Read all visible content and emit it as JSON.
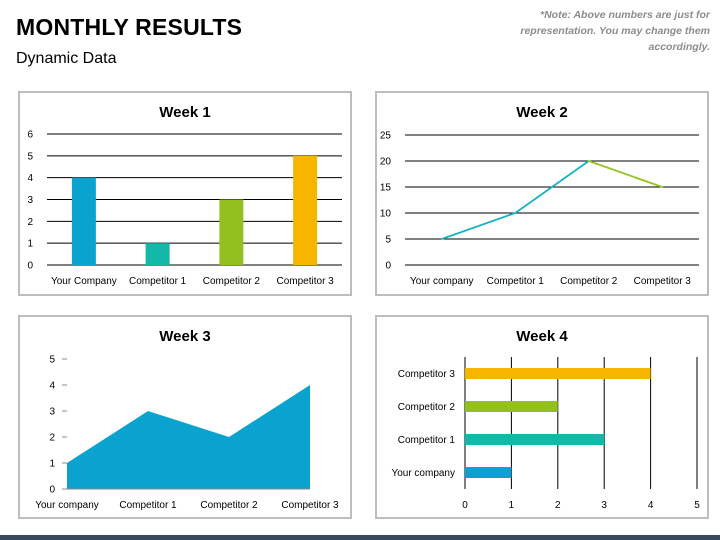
{
  "page": {
    "title": "MONTHLY RESULTS",
    "subtitle": "Dynamic Data",
    "note": "*Note: Above numbers are just for representation. You may change them accordingly."
  },
  "colors": {
    "blue": "#0aa3d0",
    "teal": "#13b8a9",
    "green": "#93c01f",
    "yellow": "#f7b500",
    "line_teal": "#16b3c4",
    "line_green": "#98c31f",
    "area": "#0aa3d0",
    "grid": "#000000"
  },
  "chart_data": [
    {
      "id": "week1",
      "type": "bar",
      "title": "Week 1",
      "categories": [
        "Your Company",
        "Competitor 1",
        "Competitor 2",
        "Competitor 3"
      ],
      "values": [
        4,
        1,
        3,
        5
      ],
      "bar_colors": [
        "#0aa3d0",
        "#13b8a9",
        "#93c01f",
        "#f7b500"
      ],
      "ylim": [
        0,
        6
      ],
      "yticks": [
        0,
        1,
        2,
        3,
        4,
        5,
        6
      ],
      "grid": true
    },
    {
      "id": "week2",
      "type": "line",
      "title": "Week 2",
      "categories": [
        "Your company",
        "Competitor 1",
        "Competitor 2",
        "Competitor 3"
      ],
      "values": [
        5,
        10,
        20,
        15
      ],
      "segment_colors": [
        "#16b3c4",
        "#16b3c4",
        "#98c31f"
      ],
      "ylim": [
        0,
        25
      ],
      "yticks": [
        0,
        5,
        10,
        15,
        20,
        25
      ],
      "grid": true
    },
    {
      "id": "week3",
      "type": "area",
      "title": "Week 3",
      "categories": [
        "Your company",
        "Competitor 1",
        "Competitor 2",
        "Competitor 3"
      ],
      "values": [
        1,
        3,
        2,
        4
      ],
      "ylim": [
        0,
        5
      ],
      "yticks": [
        0,
        1,
        2,
        3,
        4,
        5
      ],
      "grid": false
    },
    {
      "id": "week4",
      "type": "bar",
      "orientation": "horizontal",
      "title": "Week 4",
      "categories": [
        "Your company",
        "Competitor 1",
        "Competitor 2",
        "Competitor 3"
      ],
      "values": [
        1,
        3,
        2,
        4
      ],
      "bar_colors": [
        "#0aa3d0",
        "#13b8a9",
        "#93c01f",
        "#f7b500"
      ],
      "xlim": [
        0,
        5
      ],
      "xticks": [
        0,
        1,
        2,
        3,
        4,
        5
      ],
      "grid": true
    }
  ]
}
